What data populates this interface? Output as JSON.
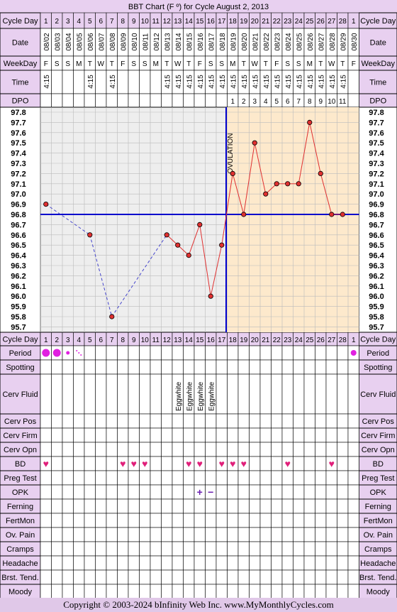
{
  "title": "BBT Chart (F º) for Cycle August 2, 2013",
  "footer": "Copyright © 2003-2024 bInfinity Web Inc.     www.MyMonthlyCycles.com",
  "colors": {
    "header_bg": "#e8d0f0",
    "cell_bg": "#eeeeee",
    "luteal_bg": "#fde9cc",
    "temp_line": "#e03030",
    "coverline": "#0000cc",
    "period": "#e020e0",
    "heart": "#e0207a"
  },
  "row_labels": {
    "cycle_day": "Cycle Day",
    "date": "Date",
    "weekday": "WeekDay",
    "time": "Time",
    "dpo": "DPO",
    "ovulation": "OVULATION",
    "fertility": [
      "Period",
      "Spotting",
      "Cerv Fluid",
      "Cerv Pos",
      "Cerv Firm",
      "Cerv Opn",
      "BD",
      "Preg Test",
      "OPK",
      "Ferning",
      "FertMon",
      "Ov. Pain",
      "Cramps",
      "Headache",
      "Brst. Tend.",
      "Moody"
    ]
  },
  "days": [
    "1",
    "2",
    "3",
    "4",
    "5",
    "6",
    "7",
    "8",
    "9",
    "10",
    "11",
    "12",
    "13",
    "14",
    "15",
    "16",
    "17",
    "18",
    "19",
    "20",
    "21",
    "22",
    "23",
    "24",
    "25",
    "26",
    "27",
    "28",
    "1"
  ],
  "dates": [
    "08/02",
    "08/03",
    "08/04",
    "08/05",
    "08/06",
    "08/07",
    "08/08",
    "08/09",
    "08/10",
    "08/11",
    "08/12",
    "08/13",
    "08/14",
    "08/15",
    "08/16",
    "08/17",
    "08/18",
    "08/19",
    "08/20",
    "08/21",
    "08/22",
    "08/23",
    "08/24",
    "08/25",
    "08/26",
    "08/27",
    "08/28",
    "08/29",
    "08/30"
  ],
  "weekdays": [
    "F",
    "S",
    "S",
    "M",
    "T",
    "W",
    "T",
    "F",
    "S",
    "S",
    "M",
    "T",
    "W",
    "T",
    "F",
    "S",
    "S",
    "M",
    "T",
    "W",
    "T",
    "F",
    "S",
    "S",
    "M",
    "T",
    "W",
    "T",
    "F"
  ],
  "times": [
    "4:15",
    "",
    "",
    "",
    "4:15",
    "",
    "4:15",
    "",
    "",
    "",
    "",
    "4:15",
    "4:15",
    "4:15",
    "4:15",
    "4:15",
    "4:15",
    "4:15",
    "4:15",
    "4:15",
    "4:15",
    "4:15",
    "4:15",
    "4:15",
    "4:15",
    "4:15",
    "4:15",
    "4:15",
    ""
  ],
  "dpo": [
    "",
    "",
    "",
    "",
    "",
    "",
    "",
    "",
    "",
    "",
    "",
    "",
    "",
    "",
    "",
    "",
    "",
    "1",
    "2",
    "3",
    "4",
    "5",
    "6",
    "7",
    "8",
    "9",
    "10",
    "11",
    ""
  ],
  "chart_data": {
    "type": "line",
    "title": "BBT Chart (F º) for Cycle August 2, 2013",
    "ylim": [
      95.7,
      97.8
    ],
    "yticks": [
      "97.8",
      "97.7",
      "97.6",
      "97.5",
      "97.4",
      "97.3",
      "97.2",
      "97.1",
      "97.0",
      "96.9",
      "96.8",
      "96.7",
      "96.6",
      "96.5",
      "96.4",
      "96.3",
      "96.2",
      "96.1",
      "96.0",
      "95.9",
      "95.8",
      "95.7"
    ],
    "x": [
      1,
      2,
      3,
      4,
      5,
      6,
      7,
      8,
      9,
      10,
      11,
      12,
      13,
      14,
      15,
      16,
      17,
      18,
      19,
      20,
      21,
      22,
      23,
      24,
      25,
      26,
      27,
      28,
      29
    ],
    "temps": [
      96.9,
      null,
      null,
      null,
      96.6,
      null,
      95.8,
      null,
      null,
      null,
      null,
      96.6,
      96.5,
      96.4,
      96.7,
      96.0,
      96.5,
      97.2,
      96.8,
      97.5,
      97.0,
      97.1,
      97.1,
      97.1,
      97.7,
      97.2,
      96.8,
      96.8,
      null
    ],
    "coverline": 96.8,
    "ovulation_day": 17,
    "grid": true
  },
  "fertility": {
    "period": [
      {
        "day": 1,
        "size": "large"
      },
      {
        "day": 2,
        "size": "large"
      },
      {
        "day": 3,
        "size": "small"
      },
      {
        "day": 4,
        "size": "spot"
      },
      {
        "day": 29,
        "size": "medium"
      }
    ],
    "cerv_fluid": [
      {
        "day": 13,
        "label": "Eggwhite"
      },
      {
        "day": 14,
        "label": "Eggwhite"
      },
      {
        "day": 15,
        "label": "Eggwhite"
      },
      {
        "day": 16,
        "label": "Eggwhite"
      }
    ],
    "bd": [
      1,
      8,
      9,
      10,
      14,
      15,
      17,
      18,
      19,
      23,
      27
    ],
    "opk": [
      {
        "day": 15,
        "label": "+"
      },
      {
        "day": 16,
        "label": "−"
      }
    ]
  }
}
